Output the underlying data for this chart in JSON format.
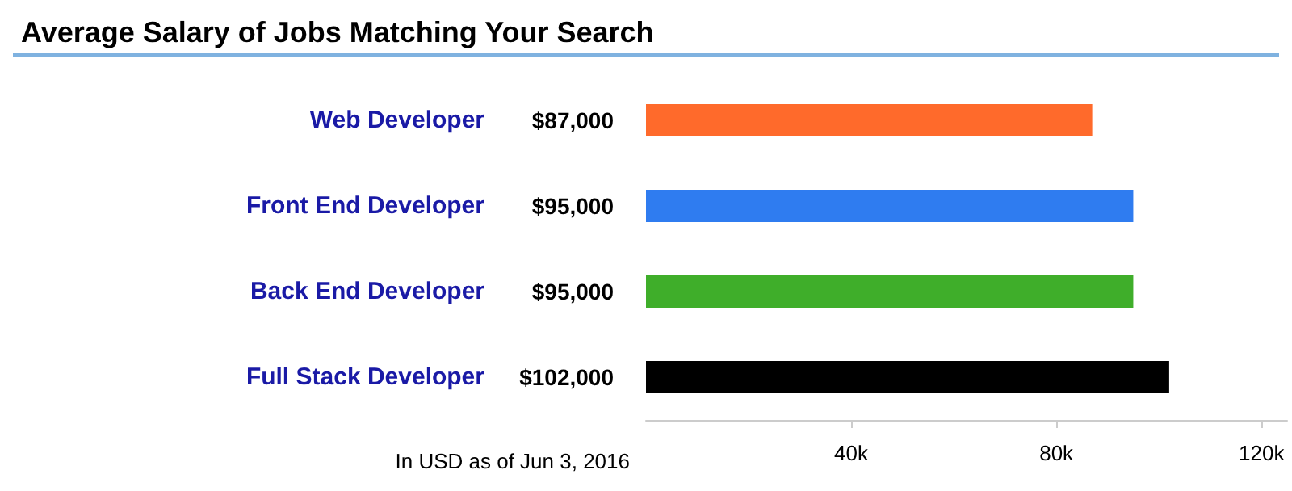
{
  "chart_data": {
    "type": "bar",
    "orientation": "horizontal",
    "title": "Average Salary of Jobs Matching Your Search",
    "categories": [
      "Web Developer",
      "Front End Developer",
      "Back End Developer",
      "Full Stack Developer"
    ],
    "values": [
      87000,
      95000,
      95000,
      102000
    ],
    "colors": [
      "#ff6a2b",
      "#2f7cf0",
      "#3fae2a",
      "#000000"
    ],
    "value_labels": [
      "$87,000",
      "$95,000",
      "$95,000",
      "$102,000"
    ],
    "xlim": [
      0,
      125000
    ],
    "xticks": [
      {
        "value": 40000,
        "label": "40k"
      },
      {
        "value": 80000,
        "label": "80k"
      },
      {
        "value": 120000,
        "label": "120k"
      }
    ],
    "grid": false,
    "annotations": [
      "In USD as of Jun 3, 2016"
    ]
  }
}
